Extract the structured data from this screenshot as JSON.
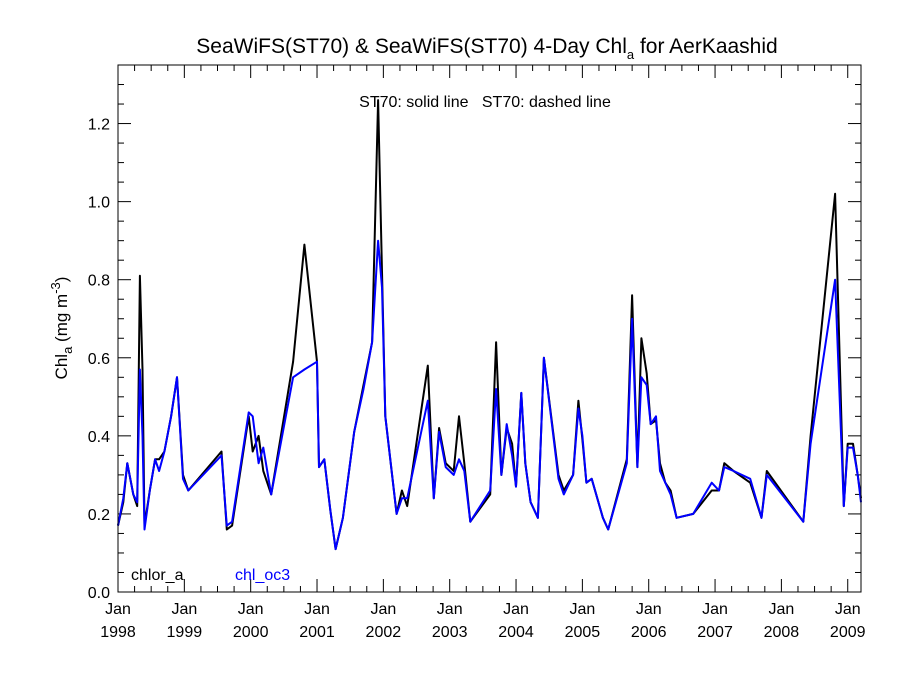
{
  "chart_data": {
    "type": "line",
    "title": {
      "prefix": "SeaWiFS(ST70) & SeaWiFS(ST70) 4-Day Chl",
      "subscript": "a",
      "suffix": " for AerKaashid"
    },
    "ylabel": {
      "prefix": "Chl",
      "subscript": "a",
      "middle": " (mg m",
      "superscript": "-3",
      "suffix": ")"
    },
    "annotation": "ST70: solid line   ST70: dashed line",
    "xlim": [
      1998.0,
      2009.2
    ],
    "ylim": [
      0.0,
      1.35
    ],
    "yticks": [
      0.0,
      0.2,
      0.4,
      0.6,
      0.8,
      1.0,
      1.2
    ],
    "ytick_labels": [
      "0.0",
      "0.2",
      "0.4",
      "0.6",
      "0.8",
      "1.0",
      "1.2"
    ],
    "xticks": [
      1998,
      1999,
      2000,
      2001,
      2002,
      2003,
      2004,
      2005,
      2006,
      2007,
      2008,
      2009
    ],
    "xtick_labels": [
      {
        "month": "Jan",
        "year": "1998"
      },
      {
        "month": "Jan",
        "year": "1999"
      },
      {
        "month": "Jan",
        "year": "2000"
      },
      {
        "month": "Jan",
        "year": "2001"
      },
      {
        "month": "Jan",
        "year": "2002"
      },
      {
        "month": "Jan",
        "year": "2003"
      },
      {
        "month": "Jan",
        "year": "2004"
      },
      {
        "month": "Jan",
        "year": "2005"
      },
      {
        "month": "Jan",
        "year": "2006"
      },
      {
        "month": "Jan",
        "year": "2007"
      },
      {
        "month": "Jan",
        "year": "2008"
      },
      {
        "month": "Jan",
        "year": "2009"
      }
    ],
    "grid": false,
    "legend_position": "bottom-left",
    "series": [
      {
        "name": "chlor_a",
        "color": "#000000",
        "points": [
          [
            1998.0,
            0.17
          ],
          [
            1998.08,
            0.23
          ],
          [
            1998.14,
            0.33
          ],
          [
            1998.23,
            0.25
          ],
          [
            1998.29,
            0.22
          ],
          [
            1998.33,
            0.81
          ],
          [
            1998.37,
            0.57
          ],
          [
            1998.4,
            0.17
          ],
          [
            1998.48,
            0.26
          ],
          [
            1998.56,
            0.34
          ],
          [
            1998.62,
            0.34
          ],
          [
            1998.7,
            0.36
          ],
          [
            1998.8,
            0.45
          ],
          [
            1998.89,
            0.55
          ],
          [
            1998.98,
            0.3
          ],
          [
            1999.06,
            0.26
          ],
          [
            1999.56,
            0.36
          ],
          [
            1999.64,
            0.16
          ],
          [
            1999.72,
            0.17
          ],
          [
            1999.97,
            0.45
          ],
          [
            2000.03,
            0.36
          ],
          [
            2000.12,
            0.4
          ],
          [
            2000.19,
            0.31
          ],
          [
            2000.31,
            0.25
          ],
          [
            2000.64,
            0.59
          ],
          [
            2000.81,
            0.89
          ],
          [
            2001.0,
            0.59
          ],
          [
            2001.03,
            0.32
          ],
          [
            2001.11,
            0.34
          ],
          [
            2001.2,
            0.21
          ],
          [
            2001.28,
            0.11
          ],
          [
            2001.39,
            0.19
          ],
          [
            2001.56,
            0.41
          ],
          [
            2001.7,
            0.53
          ],
          [
            2001.83,
            0.64
          ],
          [
            2001.92,
            1.26
          ],
          [
            2001.98,
            0.82
          ],
          [
            2002.03,
            0.45
          ],
          [
            2002.2,
            0.2
          ],
          [
            2002.28,
            0.26
          ],
          [
            2002.36,
            0.22
          ],
          [
            2002.67,
            0.58
          ],
          [
            2002.76,
            0.24
          ],
          [
            2002.84,
            0.42
          ],
          [
            2002.94,
            0.33
          ],
          [
            2003.06,
            0.31
          ],
          [
            2003.14,
            0.45
          ],
          [
            2003.22,
            0.33
          ],
          [
            2003.31,
            0.18
          ],
          [
            2003.61,
            0.25
          ],
          [
            2003.7,
            0.64
          ],
          [
            2003.78,
            0.3
          ],
          [
            2003.86,
            0.42
          ],
          [
            2003.94,
            0.38
          ],
          [
            2004.0,
            0.27
          ],
          [
            2004.08,
            0.51
          ],
          [
            2004.14,
            0.33
          ],
          [
            2004.22,
            0.23
          ],
          [
            2004.33,
            0.19
          ],
          [
            2004.42,
            0.6
          ],
          [
            2004.64,
            0.3
          ],
          [
            2004.72,
            0.26
          ],
          [
            2004.86,
            0.3
          ],
          [
            2004.94,
            0.49
          ],
          [
            2005.0,
            0.39
          ],
          [
            2005.06,
            0.28
          ],
          [
            2005.14,
            0.29
          ],
          [
            2005.31,
            0.19
          ],
          [
            2005.39,
            0.16
          ],
          [
            2005.67,
            0.34
          ],
          [
            2005.75,
            0.76
          ],
          [
            2005.83,
            0.32
          ],
          [
            2005.89,
            0.65
          ],
          [
            2005.97,
            0.56
          ],
          [
            2006.03,
            0.43
          ],
          [
            2006.11,
            0.44
          ],
          [
            2006.17,
            0.33
          ],
          [
            2006.25,
            0.28
          ],
          [
            2006.33,
            0.26
          ],
          [
            2006.42,
            0.19
          ],
          [
            2006.67,
            0.2
          ],
          [
            2006.95,
            0.26
          ],
          [
            2007.06,
            0.26
          ],
          [
            2007.14,
            0.33
          ],
          [
            2007.28,
            0.31
          ],
          [
            2007.53,
            0.28
          ],
          [
            2007.7,
            0.19
          ],
          [
            2007.78,
            0.31
          ],
          [
            2008.33,
            0.18
          ],
          [
            2008.44,
            0.4
          ],
          [
            2008.81,
            1.02
          ],
          [
            2008.94,
            0.22
          ],
          [
            2009.0,
            0.38
          ],
          [
            2009.08,
            0.38
          ],
          [
            2009.15,
            0.3
          ],
          [
            2009.2,
            0.24
          ]
        ]
      },
      {
        "name": "chl_oc3",
        "color": "#0000ff",
        "points": [
          [
            1998.0,
            0.17
          ],
          [
            1998.08,
            0.24
          ],
          [
            1998.14,
            0.33
          ],
          [
            1998.23,
            0.25
          ],
          [
            1998.29,
            0.23
          ],
          [
            1998.33,
            0.57
          ],
          [
            1998.37,
            0.4
          ],
          [
            1998.4,
            0.16
          ],
          [
            1998.48,
            0.26
          ],
          [
            1998.56,
            0.34
          ],
          [
            1998.62,
            0.31
          ],
          [
            1998.7,
            0.36
          ],
          [
            1998.8,
            0.45
          ],
          [
            1998.89,
            0.55
          ],
          [
            1998.98,
            0.29
          ],
          [
            1999.06,
            0.26
          ],
          [
            1999.56,
            0.35
          ],
          [
            1999.64,
            0.17
          ],
          [
            1999.72,
            0.18
          ],
          [
            1999.97,
            0.46
          ],
          [
            2000.03,
            0.45
          ],
          [
            2000.12,
            0.33
          ],
          [
            2000.19,
            0.37
          ],
          [
            2000.31,
            0.25
          ],
          [
            2000.64,
            0.55
          ],
          [
            2000.81,
            0.57
          ],
          [
            2001.0,
            0.59
          ],
          [
            2001.03,
            0.32
          ],
          [
            2001.11,
            0.34
          ],
          [
            2001.2,
            0.21
          ],
          [
            2001.28,
            0.11
          ],
          [
            2001.39,
            0.19
          ],
          [
            2001.56,
            0.41
          ],
          [
            2001.7,
            0.52
          ],
          [
            2001.83,
            0.64
          ],
          [
            2001.92,
            0.9
          ],
          [
            2001.98,
            0.78
          ],
          [
            2002.03,
            0.45
          ],
          [
            2002.2,
            0.2
          ],
          [
            2002.28,
            0.24
          ],
          [
            2002.36,
            0.24
          ],
          [
            2002.67,
            0.49
          ],
          [
            2002.76,
            0.24
          ],
          [
            2002.84,
            0.41
          ],
          [
            2002.94,
            0.32
          ],
          [
            2003.06,
            0.3
          ],
          [
            2003.14,
            0.34
          ],
          [
            2003.22,
            0.31
          ],
          [
            2003.31,
            0.18
          ],
          [
            2003.61,
            0.26
          ],
          [
            2003.7,
            0.52
          ],
          [
            2003.78,
            0.3
          ],
          [
            2003.86,
            0.43
          ],
          [
            2003.94,
            0.35
          ],
          [
            2004.0,
            0.27
          ],
          [
            2004.08,
            0.51
          ],
          [
            2004.14,
            0.33
          ],
          [
            2004.22,
            0.23
          ],
          [
            2004.33,
            0.19
          ],
          [
            2004.42,
            0.6
          ],
          [
            2004.64,
            0.29
          ],
          [
            2004.72,
            0.25
          ],
          [
            2004.86,
            0.3
          ],
          [
            2004.94,
            0.47
          ],
          [
            2005.0,
            0.4
          ],
          [
            2005.06,
            0.28
          ],
          [
            2005.14,
            0.29
          ],
          [
            2005.31,
            0.19
          ],
          [
            2005.39,
            0.16
          ],
          [
            2005.67,
            0.33
          ],
          [
            2005.75,
            0.7
          ],
          [
            2005.83,
            0.32
          ],
          [
            2005.89,
            0.55
          ],
          [
            2005.97,
            0.53
          ],
          [
            2006.03,
            0.43
          ],
          [
            2006.11,
            0.45
          ],
          [
            2006.17,
            0.31
          ],
          [
            2006.25,
            0.28
          ],
          [
            2006.33,
            0.25
          ],
          [
            2006.42,
            0.19
          ],
          [
            2006.67,
            0.2
          ],
          [
            2006.95,
            0.28
          ],
          [
            2007.06,
            0.26
          ],
          [
            2007.14,
            0.32
          ],
          [
            2007.28,
            0.31
          ],
          [
            2007.53,
            0.29
          ],
          [
            2007.7,
            0.19
          ],
          [
            2007.78,
            0.3
          ],
          [
            2008.33,
            0.18
          ],
          [
            2008.44,
            0.38
          ],
          [
            2008.81,
            0.8
          ],
          [
            2008.94,
            0.22
          ],
          [
            2009.0,
            0.37
          ],
          [
            2009.08,
            0.37
          ],
          [
            2009.15,
            0.3
          ],
          [
            2009.2,
            0.23
          ]
        ]
      }
    ]
  }
}
